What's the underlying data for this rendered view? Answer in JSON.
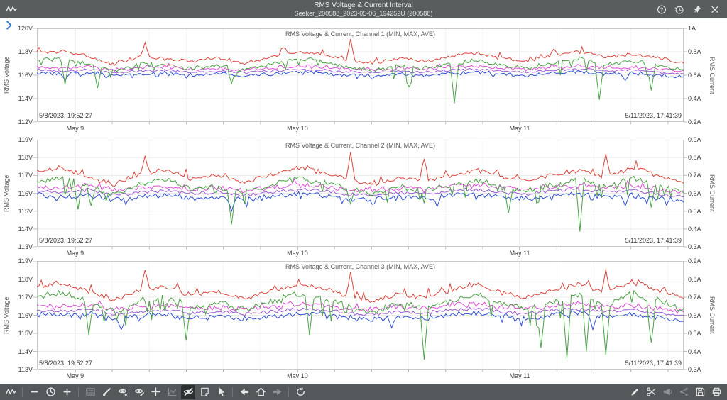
{
  "window": {
    "title": "RMS Voltage & Current Interval",
    "subtitle": "Seeker_200588_2023-05-06_194252U (200588)",
    "actions": [
      {
        "icon": "help",
        "name": "help-button"
      },
      {
        "icon": "history",
        "name": "history-button"
      },
      {
        "icon": "pin",
        "name": "pin-button"
      },
      {
        "icon": "close",
        "name": "close-button"
      }
    ]
  },
  "side_panel": {
    "chevron_icon": "chevron-right-icon"
  },
  "colors": {
    "topbar_bg": "#585d5e",
    "toolbar_bg": "#54585a",
    "accent_blue": "#2b7bd4",
    "trace_red": "#d9453c",
    "trace_green": "#4aa345",
    "trace_magenta": "#dd4fd5",
    "trace_violet": "#9a5ad0",
    "trace_blue": "#2f4fd0",
    "grid_minor": "#f4f4f4",
    "grid_day": "#e0e0e0",
    "grid_h": "#ebebeb",
    "plot_border": "#c9c9c9",
    "tick": "#b0b0b0"
  },
  "toolbar": {
    "left": [
      {
        "icon": "waveform",
        "name": "chart-menu-button"
      },
      {
        "sep": true
      },
      {
        "icon": "minus",
        "name": "zoom-out-button"
      },
      {
        "icon": "clock",
        "name": "time-range-button"
      },
      {
        "icon": "plus",
        "name": "zoom-in-button"
      },
      {
        "sep": true
      },
      {
        "icon": "table",
        "name": "data-table-button",
        "state": "disabled"
      },
      {
        "icon": "marker",
        "name": "draw-marker-button"
      },
      {
        "icon": "eye-x",
        "name": "hide-annotations-button"
      },
      {
        "icon": "eye-pencil",
        "name": "annotate-button"
      },
      {
        "icon": "crosshair",
        "name": "crosshair-button"
      },
      {
        "icon": "line-chart",
        "name": "limit-lines-button",
        "state": "disabled"
      },
      {
        "icon": "eye-slash",
        "name": "hide-events-button",
        "state": "active"
      },
      {
        "icon": "note",
        "name": "add-note-button"
      },
      {
        "icon": "cursor",
        "name": "pointer-tool-button"
      },
      {
        "sep": true
      },
      {
        "icon": "arrow-left",
        "name": "back-button"
      },
      {
        "icon": "home",
        "name": "home-view-button"
      },
      {
        "icon": "arrow-right",
        "name": "forward-button",
        "state": "disabled"
      },
      {
        "sep": true
      },
      {
        "icon": "refresh",
        "name": "refresh-button"
      }
    ],
    "right": [
      {
        "icon": "pencil",
        "name": "edit-button"
      },
      {
        "icon": "scissors",
        "name": "cut-button"
      },
      {
        "icon": "megaphone",
        "name": "announce-button",
        "state": "disabled"
      },
      {
        "icon": "share",
        "name": "share-button",
        "state": "disabled"
      },
      {
        "icon": "floppy",
        "name": "save-button"
      },
      {
        "icon": "printer",
        "name": "print-button"
      }
    ]
  },
  "chart_data": [
    {
      "type": "line",
      "title": "RMS Voltage & Current, Channel 1 (MIN, MAX, AVE)",
      "start_label": "5/8/2023, 19:52:27",
      "end_label": "5/11/2023, 17:41:39",
      "x_ticks": [
        "May 9",
        "May 10",
        "May 11"
      ],
      "y_left": {
        "label": "RMS Voltage",
        "unit": "V",
        "max": 120,
        "min": 112,
        "step": 2
      },
      "y_right": {
        "label": "RMS Current",
        "unit": "A",
        "max": 1.0,
        "min": 0.2,
        "step": 0.2
      },
      "series": [
        {
          "name": "current-ave",
          "axis": "right",
          "color": "#9a5ad0",
          "jitter": 0.008,
          "hair": 0,
          "anchors": [
            0.645,
            0.635,
            0.65,
            0.62,
            0.635,
            0.645,
            0.625,
            0.635,
            0.62,
            0.635,
            0.65,
            0.645,
            0.625,
            0.62,
            0.635,
            0.625,
            0.645,
            0.65,
            0.635,
            0.625,
            0.645,
            0.65,
            0.635,
            0.645,
            0.625,
            0.61
          ]
        },
        {
          "name": "current-min",
          "axis": "right",
          "color": "#2f4fd0",
          "jitter": 0.012,
          "hair": -0.03,
          "anchors": [
            0.62,
            0.61,
            0.625,
            0.595,
            0.61,
            0.62,
            0.6,
            0.61,
            0.595,
            0.61,
            0.625,
            0.62,
            0.6,
            0.595,
            0.61,
            0.6,
            0.62,
            0.625,
            0.61,
            0.6,
            0.62,
            0.625,
            0.61,
            0.62,
            0.6,
            0.585
          ],
          "spikes": [
            [
              0.045,
              0.56
            ],
            [
              0.52,
              0.565
            ],
            [
              0.91,
              0.555
            ]
          ]
        },
        {
          "name": "current-max",
          "axis": "right",
          "color": "#dd4fd5",
          "jitter": 0.012,
          "hair": 0.025,
          "anchors": [
            0.67,
            0.66,
            0.675,
            0.645,
            0.66,
            0.67,
            0.65,
            0.66,
            0.645,
            0.66,
            0.675,
            0.67,
            0.65,
            0.645,
            0.66,
            0.65,
            0.67,
            0.675,
            0.66,
            0.65,
            0.67,
            0.675,
            0.66,
            0.67,
            0.65,
            0.635
          ]
        },
        {
          "name": "voltage-min",
          "axis": "left",
          "color": "#4aa345",
          "jitter": 0.15,
          "hair": -1.1,
          "anchors": [
            117.3,
            117.45,
            117.0,
            116.3,
            117.0,
            116.8,
            116.55,
            116.9,
            116.4,
            116.9,
            117.4,
            117.2,
            116.7,
            116.4,
            116.85,
            116.6,
            117.0,
            117.3,
            116.8,
            116.6,
            117.1,
            117.4,
            116.9,
            117.2,
            116.85,
            116.4
          ],
          "spikes": [
            [
              0.045,
              115.2
            ],
            [
              0.095,
              114.9
            ],
            [
              0.3,
              115.3
            ],
            [
              0.575,
              115.0
            ],
            [
              0.645,
              113.6
            ],
            [
              0.87,
              113.9
            ],
            [
              0.95,
              114.7
            ]
          ]
        },
        {
          "name": "voltage-max",
          "axis": "left",
          "color": "#d9453c",
          "jitter": 0.12,
          "hair": 0.45,
          "anchors": [
            117.9,
            118.05,
            117.6,
            116.9,
            117.6,
            117.4,
            117.15,
            117.5,
            117.0,
            117.5,
            118.0,
            117.8,
            117.3,
            117.0,
            117.45,
            117.2,
            117.6,
            117.9,
            117.4,
            117.2,
            117.7,
            118.0,
            117.5,
            117.8,
            117.45,
            117.0
          ],
          "spikes": [
            [
              0.168,
              118.8
            ],
            [
              0.38,
              118.35
            ],
            [
              0.486,
              119.1
            ],
            [
              0.8,
              118.25
            ]
          ]
        }
      ]
    },
    {
      "type": "line",
      "title": "RMS Voltage & Current, Channel 2 (MIN, MAX, AVE)",
      "start_label": "5/8/2023, 19:52:27",
      "end_label": "5/11/2023, 17:41:39",
      "x_ticks": [
        "May 9",
        "May 10",
        "May 11"
      ],
      "y_left": {
        "label": "RMS Voltage",
        "unit": "V",
        "max": 119,
        "min": 113,
        "step": 1
      },
      "y_right": {
        "label": "RMS Current",
        "unit": "A",
        "max": 0.9,
        "min": 0.3,
        "step": 0.1
      },
      "series": [
        {
          "name": "current-ave",
          "axis": "right",
          "color": "#9a5ad0",
          "jitter": 0.008,
          "hair": 0,
          "anchors": [
            0.615,
            0.605,
            0.62,
            0.59,
            0.605,
            0.615,
            0.595,
            0.605,
            0.59,
            0.605,
            0.62,
            0.615,
            0.595,
            0.59,
            0.605,
            0.595,
            0.615,
            0.62,
            0.605,
            0.595,
            0.615,
            0.62,
            0.605,
            0.615,
            0.595,
            0.58
          ]
        },
        {
          "name": "current-min",
          "axis": "right",
          "color": "#2f4fd0",
          "jitter": 0.012,
          "hair": -0.03,
          "anchors": [
            0.59,
            0.58,
            0.595,
            0.565,
            0.58,
            0.59,
            0.57,
            0.58,
            0.565,
            0.58,
            0.595,
            0.59,
            0.57,
            0.565,
            0.58,
            0.57,
            0.59,
            0.595,
            0.58,
            0.57,
            0.59,
            0.595,
            0.58,
            0.59,
            0.57,
            0.555
          ],
          "spikes": [
            [
              0.3,
              0.5
            ],
            [
              0.62,
              0.525
            ],
            [
              0.91,
              0.53
            ]
          ]
        },
        {
          "name": "current-max",
          "axis": "right",
          "color": "#dd4fd5",
          "jitter": 0.012,
          "hair": 0.025,
          "anchors": [
            0.64,
            0.63,
            0.645,
            0.615,
            0.63,
            0.64,
            0.62,
            0.63,
            0.615,
            0.63,
            0.645,
            0.64,
            0.62,
            0.615,
            0.63,
            0.62,
            0.64,
            0.645,
            0.63,
            0.62,
            0.64,
            0.645,
            0.63,
            0.64,
            0.62,
            0.605
          ]
        },
        {
          "name": "voltage-min",
          "axis": "left",
          "color": "#4aa345",
          "jitter": 0.13,
          "hair": -0.9,
          "anchors": [
            116.65,
            116.9,
            116.35,
            115.95,
            116.55,
            116.75,
            116.25,
            116.45,
            116.05,
            116.45,
            116.85,
            116.65,
            116.25,
            115.95,
            116.35,
            116.15,
            116.45,
            116.75,
            116.35,
            116.15,
            116.5,
            116.75,
            116.35,
            116.9,
            116.45,
            116.05
          ],
          "spikes": [
            [
              0.065,
              115.1
            ],
            [
              0.085,
              115.3
            ],
            [
              0.3,
              114.25
            ],
            [
              0.486,
              115.4
            ],
            [
              0.73,
              114.9
            ],
            [
              0.84,
              113.85
            ],
            [
              0.95,
              115.2
            ]
          ]
        },
        {
          "name": "voltage-max",
          "axis": "left",
          "color": "#d9453c",
          "jitter": 0.1,
          "hair": 0.4,
          "anchors": [
            117.2,
            117.45,
            116.9,
            116.5,
            117.1,
            117.3,
            116.8,
            117.0,
            116.6,
            117.0,
            117.4,
            117.2,
            116.8,
            116.5,
            116.9,
            116.7,
            117.0,
            117.3,
            116.9,
            116.7,
            117.05,
            117.3,
            116.9,
            117.45,
            117.0,
            116.6
          ],
          "spikes": [
            [
              0.168,
              118.1
            ],
            [
              0.486,
              118.3
            ],
            [
              0.6,
              117.9
            ],
            [
              0.88,
              118.2
            ]
          ]
        }
      ]
    },
    {
      "type": "line",
      "title": "RMS Voltage & Current, Channel 3 (MIN, MAX, AVE)",
      "start_label": "5/8/2023, 19:52:27",
      "end_label": "5/11/2023, 17:41:39",
      "x_ticks": [
        "May 9",
        "May 10",
        "May 11"
      ],
      "y_left": {
        "label": "RMS Voltage",
        "unit": "V",
        "max": 119,
        "min": 113,
        "step": 1
      },
      "y_right": {
        "label": "RMS Current",
        "unit": "A",
        "max": 0.9,
        "min": 0.3,
        "step": 0.1
      },
      "series": [
        {
          "name": "current-ave",
          "axis": "right",
          "color": "#9a5ad0",
          "jitter": 0.008,
          "hair": 0,
          "anchors": [
            0.63,
            0.62,
            0.635,
            0.605,
            0.62,
            0.63,
            0.61,
            0.62,
            0.605,
            0.62,
            0.635,
            0.63,
            0.61,
            0.605,
            0.62,
            0.61,
            0.63,
            0.635,
            0.62,
            0.61,
            0.63,
            0.635,
            0.62,
            0.63,
            0.61,
            0.595
          ]
        },
        {
          "name": "current-min",
          "axis": "right",
          "color": "#2f4fd0",
          "jitter": 0.012,
          "hair": -0.03,
          "anchors": [
            0.605,
            0.595,
            0.61,
            0.58,
            0.595,
            0.605,
            0.585,
            0.595,
            0.58,
            0.595,
            0.61,
            0.605,
            0.585,
            0.58,
            0.595,
            0.585,
            0.605,
            0.61,
            0.595,
            0.585,
            0.605,
            0.61,
            0.595,
            0.605,
            0.585,
            0.57
          ],
          "spikes": [
            [
              0.13,
              0.52
            ],
            [
              0.55,
              0.53
            ],
            [
              0.86,
              0.52
            ]
          ]
        },
        {
          "name": "current-max",
          "axis": "right",
          "color": "#dd4fd5",
          "jitter": 0.012,
          "hair": 0.025,
          "anchors": [
            0.655,
            0.645,
            0.66,
            0.63,
            0.645,
            0.655,
            0.635,
            0.645,
            0.63,
            0.645,
            0.66,
            0.655,
            0.635,
            0.63,
            0.645,
            0.635,
            0.655,
            0.66,
            0.645,
            0.635,
            0.655,
            0.66,
            0.645,
            0.655,
            0.635,
            0.62
          ]
        },
        {
          "name": "voltage-min",
          "axis": "left",
          "color": "#4aa345",
          "jitter": 0.15,
          "hair": -1.2,
          "anchors": [
            117.0,
            117.2,
            116.7,
            116.2,
            116.8,
            117.0,
            116.5,
            116.7,
            116.3,
            116.7,
            117.1,
            116.9,
            116.5,
            116.2,
            116.6,
            116.4,
            116.8,
            117.1,
            116.6,
            116.4,
            116.8,
            117.1,
            116.6,
            117.25,
            116.8,
            116.3
          ],
          "spikes": [
            [
              0.08,
              114.9
            ],
            [
              0.23,
              114.6
            ],
            [
              0.42,
              114.9
            ],
            [
              0.6,
              113.55
            ],
            [
              0.78,
              114.2
            ],
            [
              0.82,
              113.6
            ],
            [
              0.85,
              114.0
            ],
            [
              0.88,
              113.8
            ],
            [
              0.95,
              114.5
            ]
          ]
        },
        {
          "name": "voltage-max",
          "axis": "left",
          "color": "#d9453c",
          "jitter": 0.11,
          "hair": 0.45,
          "anchors": [
            117.6,
            117.8,
            117.3,
            116.8,
            117.4,
            117.6,
            117.1,
            117.3,
            116.9,
            117.3,
            117.7,
            117.5,
            117.1,
            116.8,
            117.2,
            117.0,
            117.4,
            117.7,
            117.2,
            117.0,
            117.4,
            117.7,
            117.2,
            117.85,
            117.4,
            116.9
          ],
          "spikes": [
            [
              0.168,
              118.5
            ],
            [
              0.486,
              118.4
            ],
            [
              0.88,
              118.55
            ]
          ]
        }
      ]
    }
  ]
}
